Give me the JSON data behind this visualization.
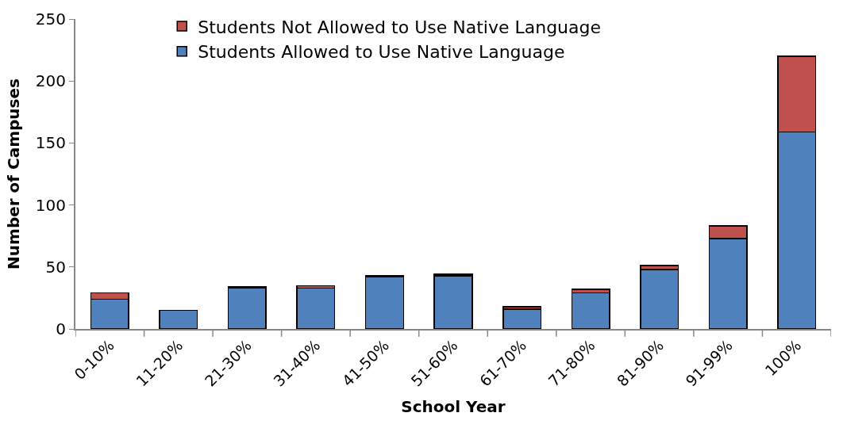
{
  "chart_data": {
    "type": "bar",
    "stacked": true,
    "xlabel": "School Year",
    "ylabel": "Number of Campuses",
    "categories": [
      "0-10%",
      "11-20%",
      "21-30%",
      "31-40%",
      "41-50%",
      "51-60%",
      "61-70%",
      "71-80%",
      "81-90%",
      "91-99%",
      "100%"
    ],
    "series": [
      {
        "name": "Students Allowed to Use Native Language",
        "color": "#4f81bd",
        "values": [
          24,
          15,
          33,
          33,
          42,
          43,
          16,
          29,
          48,
          73,
          159
        ]
      },
      {
        "name": "Students Not Allowed to Use Native Language",
        "color": "#c0504d",
        "values": [
          5,
          null,
          1,
          2,
          1,
          1,
          2,
          3,
          3,
          10,
          61
        ]
      }
    ],
    "ylim": [
      0,
      250
    ],
    "yticks": [
      0,
      50,
      100,
      150,
      200,
      250
    ],
    "legend": "top left"
  }
}
